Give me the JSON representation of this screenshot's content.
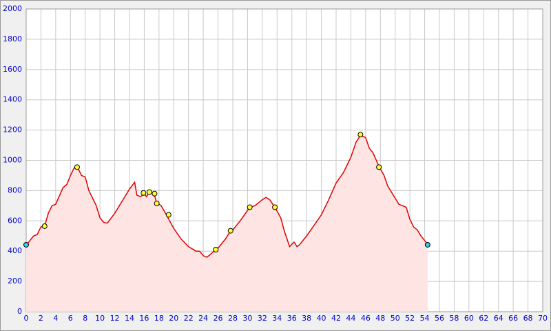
{
  "chart_data": {
    "type": "area",
    "x": [
      0,
      1,
      1.5,
      2,
      2.5,
      3,
      3.5,
      4,
      5,
      5.5,
      6,
      6.5,
      7,
      7.5,
      8,
      8.5,
      9,
      9.5,
      10,
      10.5,
      11,
      12,
      13,
      14,
      14.7,
      15,
      15.5,
      16,
      16.3,
      16.7,
      17.3,
      17.7,
      18.3,
      19,
      20,
      21,
      22,
      23,
      23.5,
      24,
      24.5,
      25,
      25.7,
      26,
      27,
      27.7,
      28,
      29,
      30.3,
      31,
      32,
      32.5,
      33,
      33.7,
      34.5,
      35,
      35.7,
      36.3,
      36.7,
      37,
      38,
      39,
      40,
      41,
      42,
      43,
      44,
      44.7,
      45.3,
      46,
      46.5,
      47,
      47.8,
      48.5,
      49,
      50,
      50.5,
      51.5,
      52,
      52.5,
      53,
      53.5,
      54,
      54.4
    ],
    "values": [
      440,
      500,
      510,
      560,
      565,
      650,
      700,
      710,
      820,
      840,
      900,
      950,
      950,
      900,
      890,
      800,
      750,
      700,
      620,
      590,
      585,
      650,
      730,
      810,
      855,
      770,
      760,
      780,
      760,
      790,
      780,
      720,
      700,
      640,
      550,
      480,
      430,
      400,
      400,
      370,
      360,
      380,
      410,
      420,
      480,
      535,
      540,
      600,
      690,
      700,
      740,
      755,
      740,
      690,
      620,
      530,
      430,
      460,
      430,
      440,
      500,
      570,
      640,
      740,
      850,
      920,
      1020,
      1120,
      1165,
      1150,
      1080,
      1050,
      960,
      900,
      830,
      750,
      710,
      690,
      610,
      560,
      540,
      500,
      470,
      445
    ],
    "color": "#e00000",
    "fill_color": "#ffe4e4",
    "markers": [
      {
        "color": "#33ccee",
        "x": [
          0,
          54.4
        ],
        "values": [
          442,
          442
        ]
      },
      {
        "color": "#ffff33",
        "x": [
          2.5,
          6.9,
          15.9,
          16.7,
          17.4,
          17.7,
          19.3,
          25.7,
          27.7,
          30.3,
          33.7,
          45.3,
          47.8
        ],
        "values": [
          565,
          955,
          785,
          790,
          780,
          715,
          640,
          410,
          535,
          690,
          690,
          1170,
          955
        ]
      }
    ],
    "xlim": [
      0,
      70
    ],
    "ylim": [
      0,
      2000
    ],
    "xticks": [
      0,
      2,
      4,
      6,
      8,
      10,
      12,
      14,
      16,
      18,
      20,
      22,
      24,
      26,
      28,
      30,
      32,
      34,
      36,
      38,
      40,
      42,
      44,
      46,
      48,
      50,
      52,
      54,
      56,
      58,
      60,
      62,
      64,
      66,
      68,
      70
    ],
    "yticks": [
      0,
      200,
      400,
      600,
      800,
      1000,
      1200,
      1400,
      1600,
      1800,
      2000
    ],
    "grid": true
  }
}
